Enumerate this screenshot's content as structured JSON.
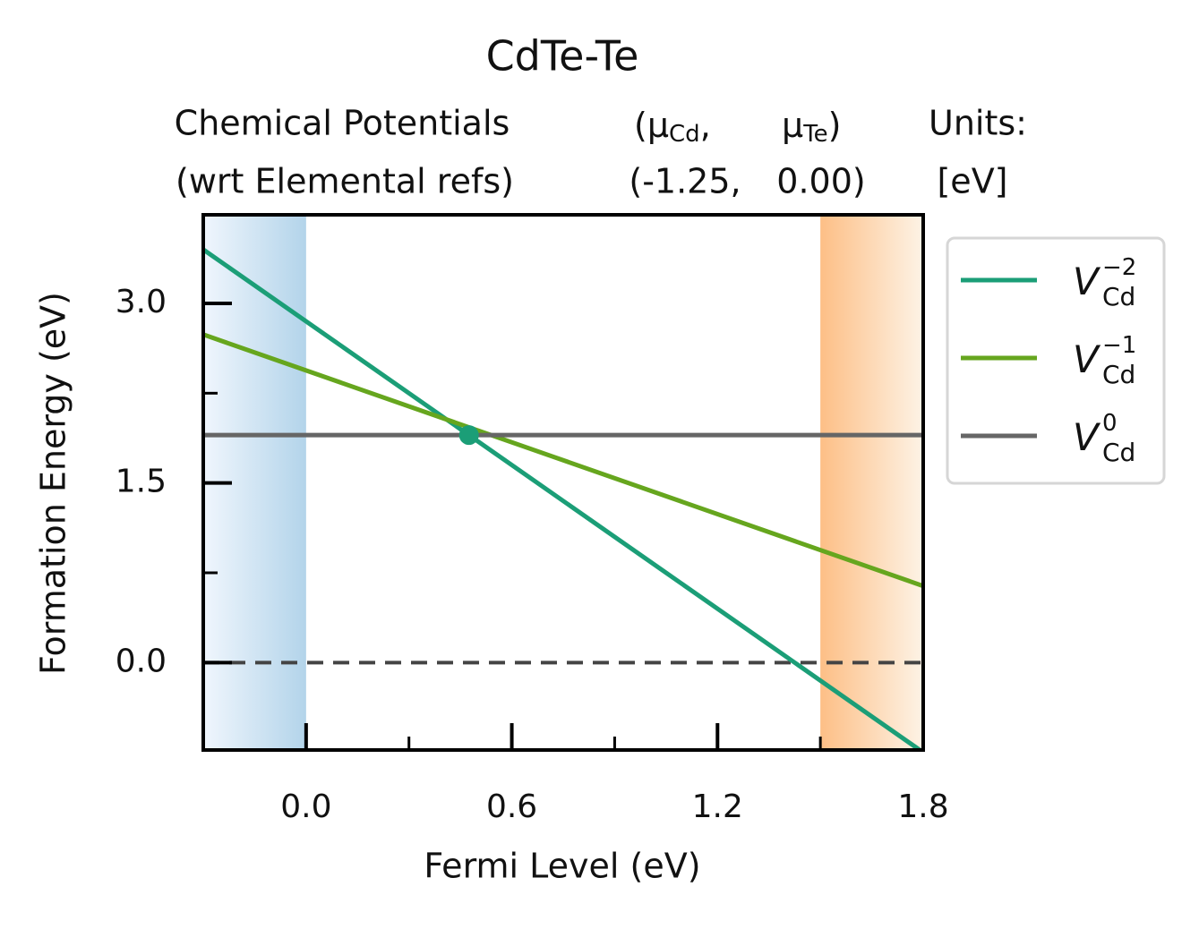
{
  "chart_data": {
    "type": "line",
    "title": "CdTe-Te",
    "header": {
      "chem_pot_label": [
        "Chemical Potentials",
        "(wrt Elemental refs)"
      ],
      "mu_symbols": [
        {
          "text": "(μ",
          "sub": "Cd",
          "after": ","
        },
        {
          "text": "μ",
          "sub": "Te",
          "after": ")"
        }
      ],
      "mu_values": [
        "(-1.25,",
        "0.00)"
      ],
      "units": [
        "Units:",
        "[eV]"
      ]
    },
    "x_label": "Fermi Level (eV)",
    "y_label": "Formation Energy (eV)",
    "x": [
      -0.3,
      1.8
    ],
    "series": [
      {
        "name": "V",
        "name_sub": "Cd",
        "name_sup": "−2",
        "color": "#1b9e77",
        "values": [
          3.45,
          -0.75
        ]
      },
      {
        "name": "V",
        "name_sub": "Cd",
        "name_sup": "−1",
        "color": "#66a61e",
        "values": [
          2.74,
          0.64
        ]
      },
      {
        "name": "V",
        "name_sub": "Cd",
        "name_sup": "0",
        "color": "#666666",
        "values": [
          1.9,
          1.9
        ]
      }
    ],
    "transition_points": {
      "x": [
        0.475
      ],
      "y": [
        1.9
      ],
      "color": "#1b9e77"
    },
    "vbm": 0,
    "cbm": 1.5,
    "vbm_colors": [
      "#f0f6fd",
      "#b3d4ea"
    ],
    "cbm_colors": [
      "#fdbf86",
      "#fdf3e6"
    ],
    "hline": 0,
    "xlim": [
      -0.3,
      1.8
    ],
    "ylim": [
      -0.73,
      3.74
    ],
    "xticks": [
      {
        "value": 0,
        "label": "0.0"
      },
      0.6,
      1.2,
      1.8
    ],
    "xminorticks": [
      0.3,
      0.9,
      1.5
    ],
    "yticks": [
      {
        "value": 0,
        "label": "0.0"
      },
      1.5,
      {
        "value": 3,
        "label": "3.0"
      }
    ],
    "yminorticks": [
      0.75,
      2.25
    ],
    "legend": "outside-right"
  }
}
